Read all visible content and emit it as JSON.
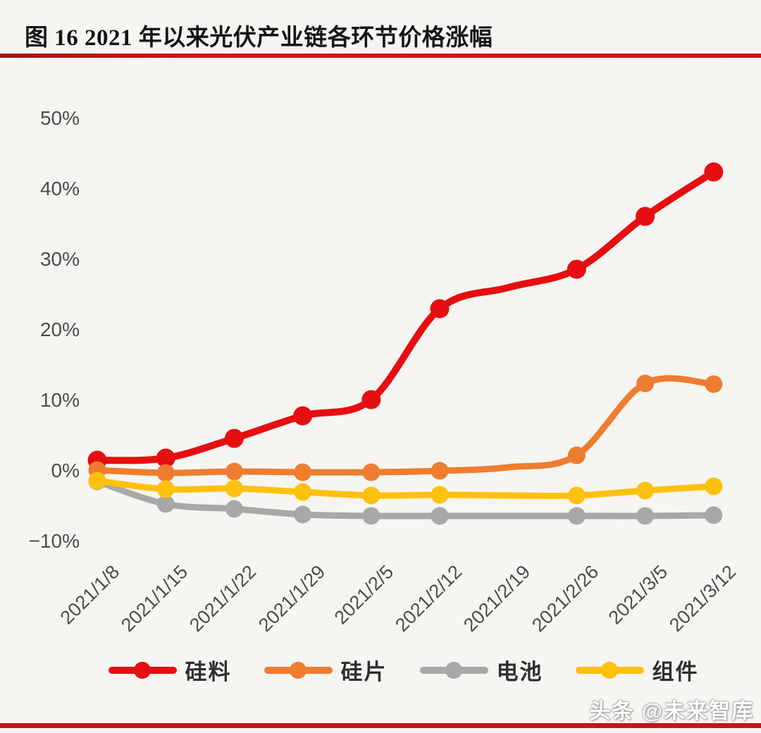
{
  "header": {
    "title": "图 16 2021 年以来光伏产业链各环节价格涨幅"
  },
  "colors": {
    "title_rule": "#c91414",
    "bottom_rule": "#c31616",
    "background": "#f6f5f2",
    "axis_text": "#4c4c4c"
  },
  "watermark": {
    "text": "头条 @未来智库"
  },
  "chart_data": {
    "type": "line",
    "title": "图 16 2021 年以来光伏产业链各环节价格涨幅",
    "categories": [
      "2021/1/8",
      "2021/1/15",
      "2021/1/22",
      "2021/1/29",
      "2021/2/5",
      "2021/2/12",
      "2021/2/19",
      "2021/2/26",
      "2021/3/5",
      "2021/3/12"
    ],
    "series": [
      {
        "name": "硅料",
        "color": "#e60e10",
        "values": [
          1.5,
          1.8,
          4.6,
          7.8,
          10.1,
          23.0,
          26.0,
          28.6,
          36.1,
          42.4
        ]
      },
      {
        "name": "硅片",
        "color": "#ee7d2f",
        "values": [
          0.1,
          -0.3,
          -0.1,
          -0.2,
          -0.2,
          0.0,
          0.5,
          2.2,
          12.4,
          12.3
        ]
      },
      {
        "name": "电池",
        "color": "#a8a8a8",
        "values": [
          -1.5,
          -4.7,
          -5.4,
          -6.2,
          -6.4,
          -6.4,
          -6.4,
          -6.4,
          -6.4,
          -6.3
        ]
      },
      {
        "name": "组件",
        "color": "#ffc10e",
        "values": [
          -1.4,
          -2.6,
          -2.5,
          -3.0,
          -3.5,
          -3.4,
          -3.5,
          -3.5,
          -2.8,
          -2.2
        ]
      }
    ],
    "no_marker_category": "2021/2/19",
    "ytick_labels": [
      "50%",
      "40%",
      "30%",
      "20%",
      "10%",
      "0%",
      "−10%"
    ],
    "ytick_values": [
      50,
      40,
      30,
      20,
      10,
      0,
      -10
    ],
    "ylim": [
      -10,
      50
    ],
    "xlabel": "",
    "ylabel": "",
    "grid": false,
    "legend_position": "bottom",
    "legend_entries": [
      "硅料",
      "硅片",
      "电池",
      "组件"
    ]
  }
}
